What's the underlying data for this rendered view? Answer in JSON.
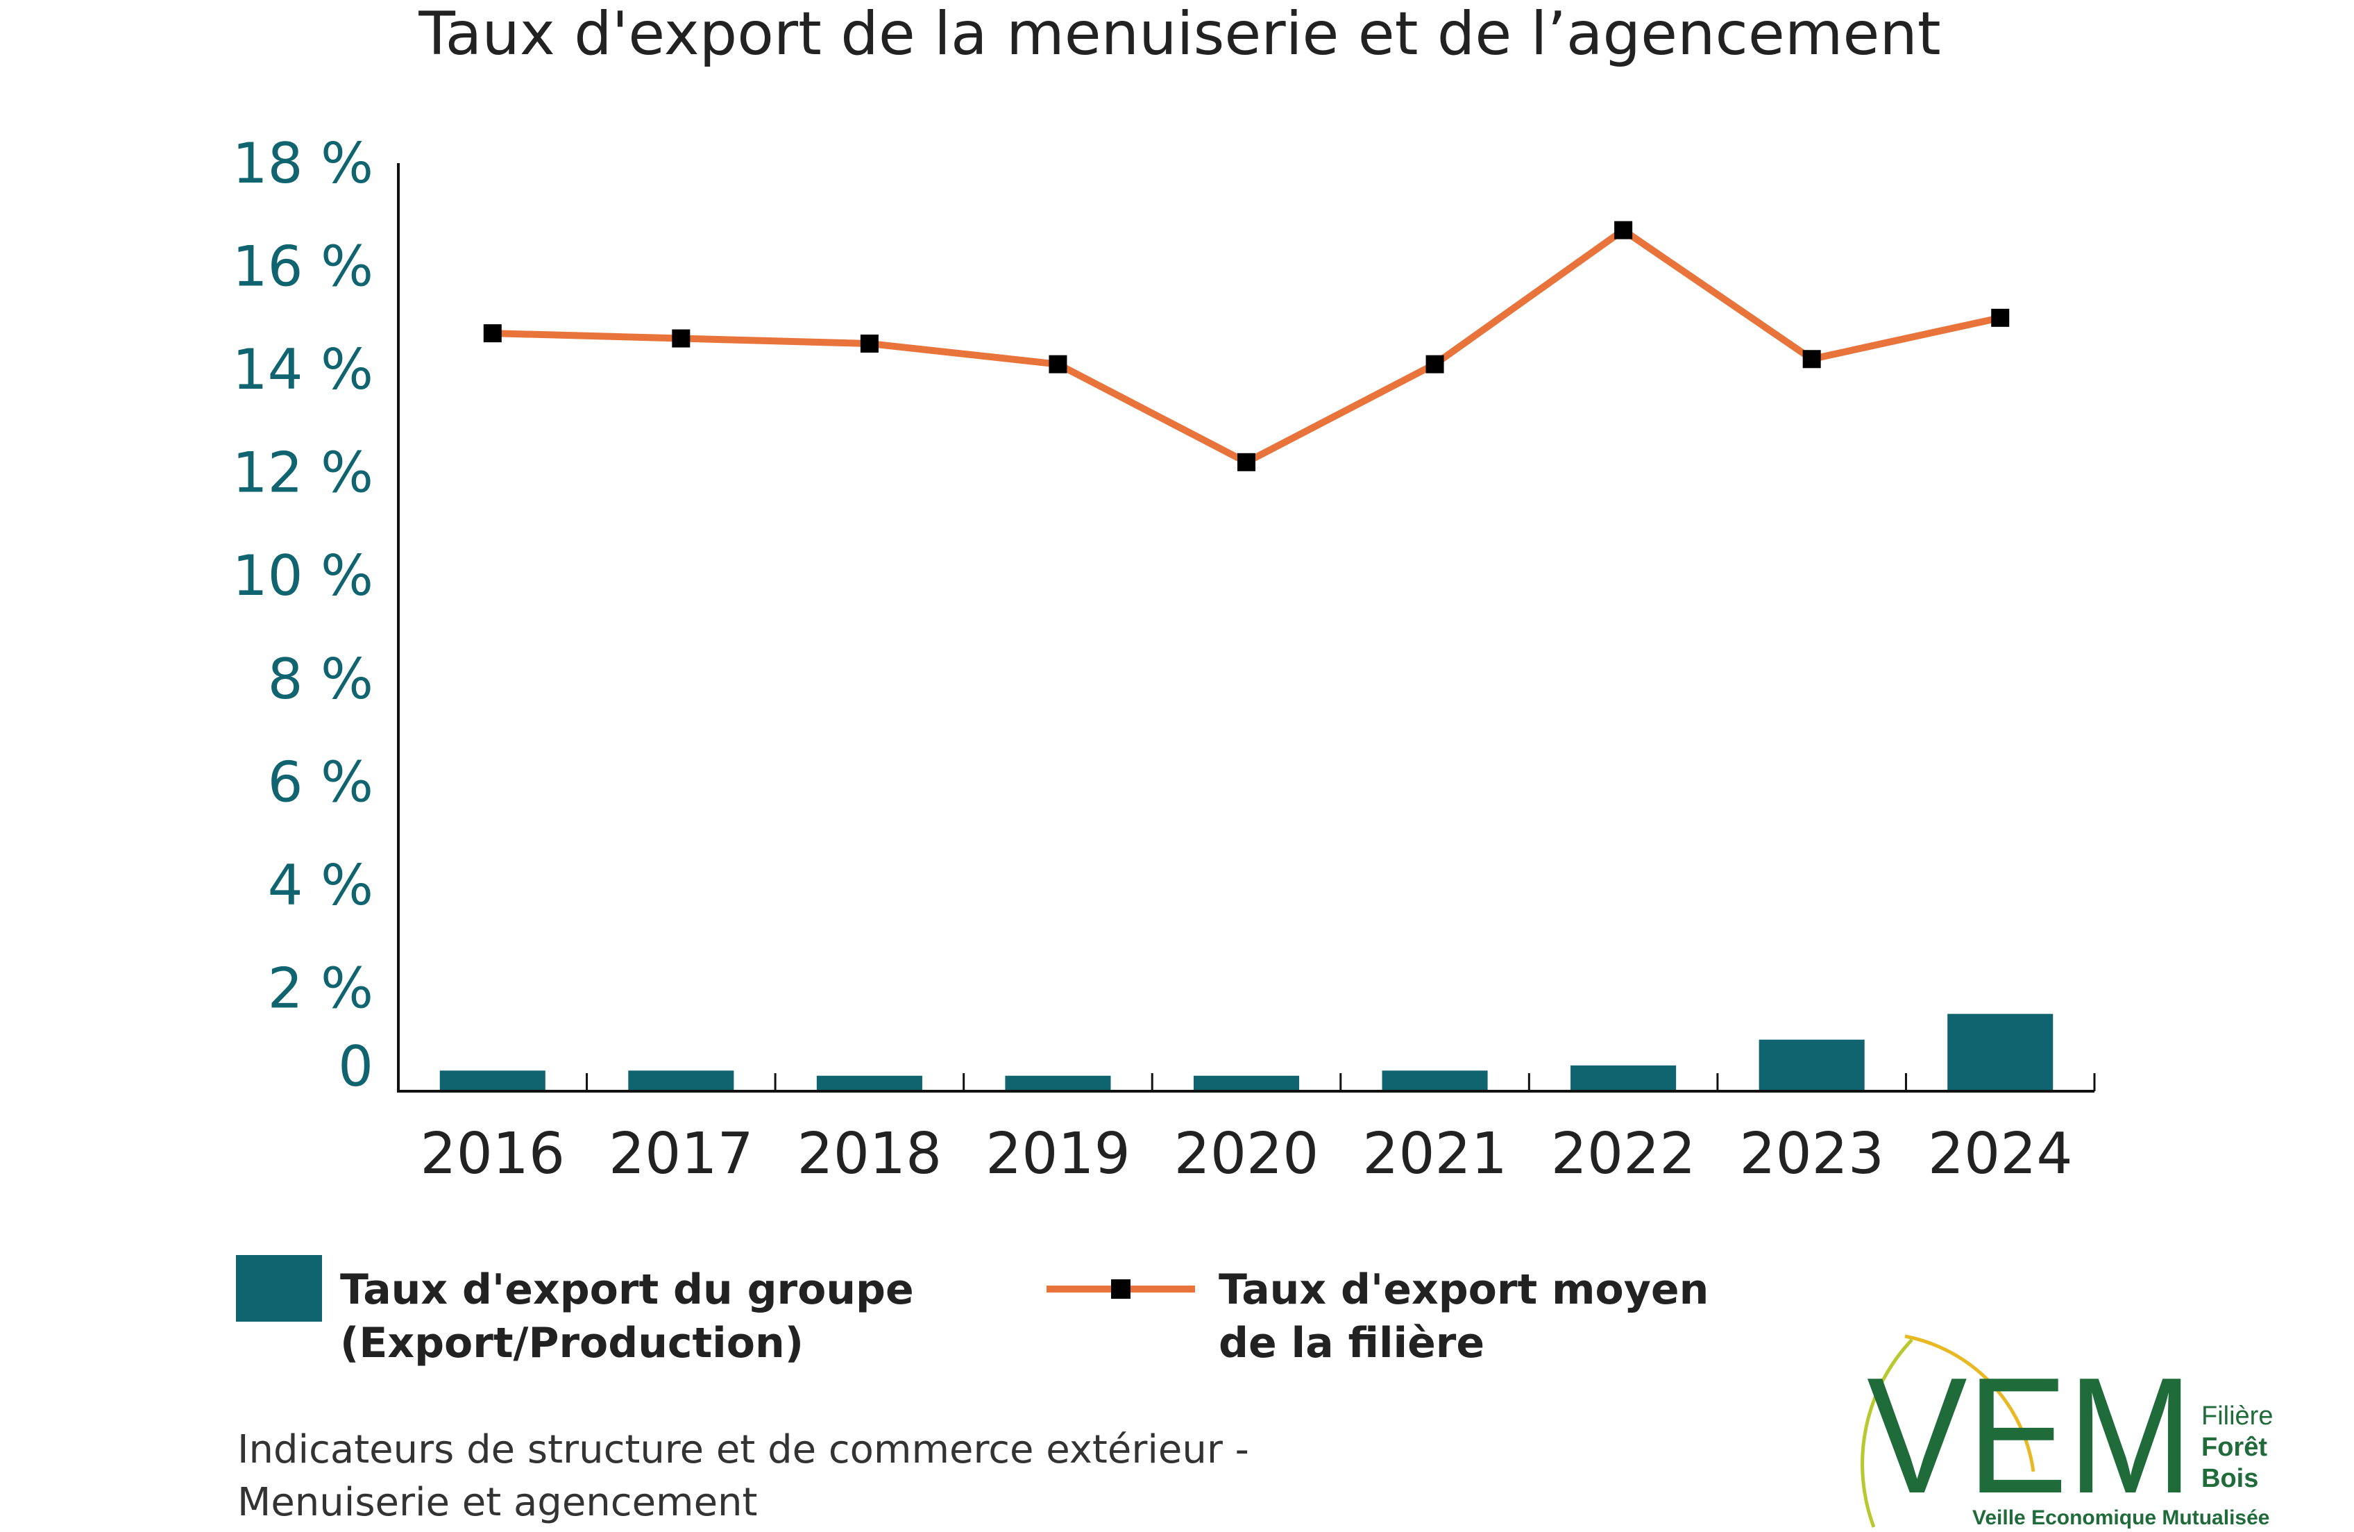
{
  "chart_data": {
    "type": "bar",
    "title": "Taux d'export de la menuiserie et de l’agencement",
    "categories": [
      "2016",
      "2017",
      "2018",
      "2019",
      "2020",
      "2021",
      "2022",
      "2023",
      "2024"
    ],
    "yticks": [
      "0",
      "2 %",
      "4 %",
      "6 %",
      "8 %",
      "10 %",
      "12 %",
      "14 %",
      "16 %",
      "18 %"
    ],
    "ylim": [
      0,
      18
    ],
    "grid": false,
    "legend_position": "bottom",
    "series": [
      {
        "name": "Taux d'export du groupe (Export/Production)",
        "name_lines": [
          "Taux d'export du groupe",
          "(Export/Production)"
        ],
        "type": "bar",
        "color": "#0f6470",
        "values": [
          0.4,
          0.4,
          0.3,
          0.3,
          0.3,
          0.4,
          0.5,
          1.0,
          1.5
        ]
      },
      {
        "name": "Taux d'export moyen de la filière",
        "name_lines": [
          "Taux d'export moyen",
          "de la filière"
        ],
        "type": "line",
        "color": "#e8743b",
        "marker_color": "#000000",
        "values": [
          14.7,
          14.6,
          14.5,
          14.1,
          12.2,
          14.1,
          16.7,
          14.2,
          15.0
        ]
      }
    ]
  },
  "footer": {
    "line1": "Indicateurs de structure et de commerce extérieur -",
    "line2": "Menuiserie et agencement"
  },
  "logo": {
    "letters": "VEM",
    "side_line1": "Filière",
    "side_line2": "Forêt",
    "side_line3": "Bois",
    "subtitle": "Veille Economique Mutualisée",
    "color": "#1f6b3a",
    "arc_color": "#b8c92f"
  }
}
